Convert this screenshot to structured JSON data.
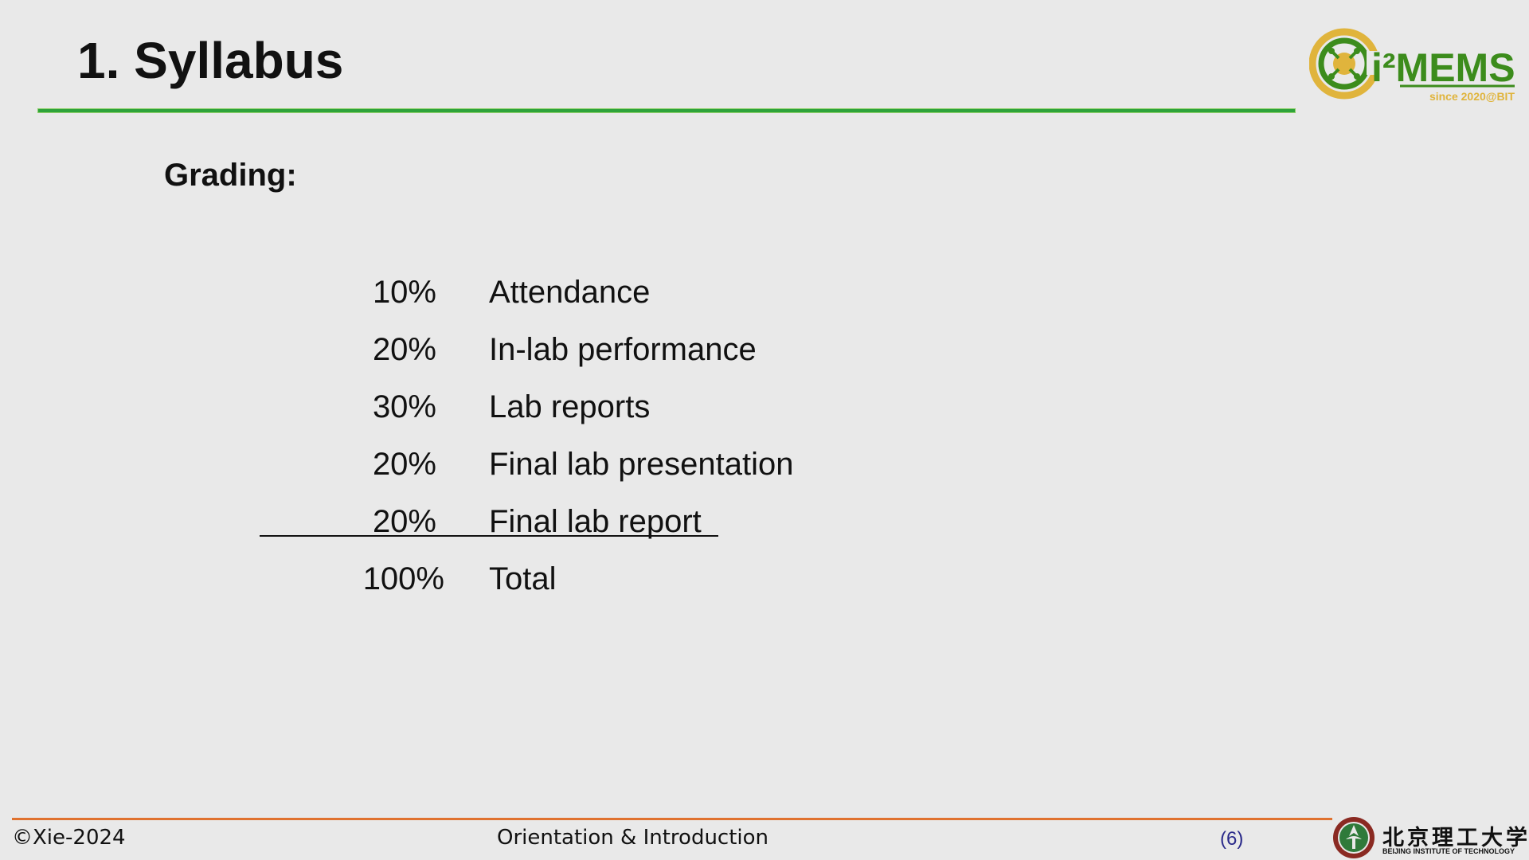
{
  "slide": {
    "title": "1. Syllabus",
    "section_label": "Grading:"
  },
  "logo": {
    "brand": "i²MEMS",
    "tagline": "since 2020@BIT",
    "colors": {
      "green": "#3c8c1c",
      "gold": "#e0b43c"
    }
  },
  "grading": {
    "items": [
      {
        "percent": "10%",
        "label": "Attendance"
      },
      {
        "percent": "20%",
        "label": "In-lab performance"
      },
      {
        "percent": "30%",
        "label": "Lab reports"
      },
      {
        "percent": "20%",
        "label": "Final lab presentation"
      },
      {
        "percent": "20%",
        "label": "Final lab report"
      }
    ],
    "total": {
      "percent": "100%",
      "label": "Total"
    }
  },
  "footer": {
    "copyright": "©Xie-2024",
    "center_text": "Orientation & Introduction",
    "page_number": "(6)",
    "university_cn": "北京理工大学",
    "university_en": "BEIJING INSTITUTE OF TECHNOLOGY"
  },
  "colors": {
    "title_rule": "#2ea33a",
    "footer_rule": "#e0722f",
    "page_number": "#2a2a8a",
    "background": "#e9e9e9"
  }
}
